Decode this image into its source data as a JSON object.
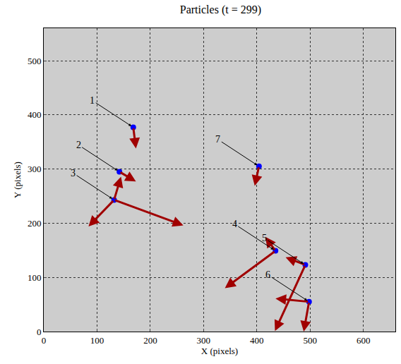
{
  "chart_data": {
    "type": "scatter",
    "title": "Particles (t = 299)",
    "x_label": "X (pixels)",
    "y_label": "Y (pixels)",
    "xlim": [
      0,
      660
    ],
    "ylim": [
      0,
      560
    ],
    "xticks": [
      0,
      100,
      200,
      300,
      400,
      500,
      600
    ],
    "yticks": [
      0,
      100,
      200,
      300,
      400,
      500
    ],
    "grid": true,
    "series": [
      {
        "name": "particles",
        "color": "#0000ff",
        "marker": "circle",
        "labels": [
          "1",
          "2",
          "3",
          "4",
          "5",
          "6",
          "7"
        ],
        "x": [
          168,
          142,
          132,
          435,
          491,
          498,
          404
        ],
        "y": [
          377,
          295,
          243,
          149,
          123,
          55,
          305
        ],
        "vectors": [
          [
            [
              5,
              -39
            ]
          ],
          [
            [
              31,
              -18
            ]
          ],
          [
            [
              -48,
              -49
            ],
            [
              130,
              -47
            ],
            [
              13,
              43
            ]
          ],
          [
            [
              -95,
              -69
            ],
            [
              -19,
              26
            ]
          ],
          [
            [
              -57,
              -122
            ],
            [
              -37,
              14
            ]
          ],
          [
            [
              -63,
              6
            ],
            [
              -10,
              -55
            ]
          ],
          [
            [
              -8,
              -36
            ]
          ]
        ],
        "vector_color": "#a00000"
      }
    ]
  }
}
